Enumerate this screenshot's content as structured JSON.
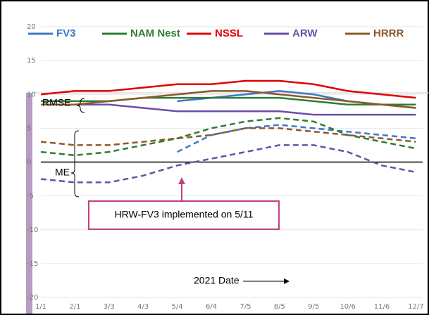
{
  "chart_data": {
    "type": "line",
    "categories": [
      "1/1",
      "2/1",
      "3/3",
      "4/3",
      "5/4",
      "6/4",
      "7/5",
      "8/5",
      "9/5",
      "10/6",
      "11/6",
      "12/7"
    ],
    "series": [
      {
        "name": "FV3",
        "color": "#3c78c8",
        "values": [
          null,
          null,
          null,
          null,
          9,
          9.5,
          10,
          10.5,
          10,
          9,
          8.5,
          8
        ],
        "me_values": [
          null,
          null,
          null,
          null,
          1.5,
          4,
          5,
          5.5,
          5,
          4.5,
          4,
          3.5
        ]
      },
      {
        "name": "NAM Nest",
        "color": "#2e7d32",
        "values": [
          9,
          9,
          9,
          9.5,
          9.5,
          9.5,
          9.5,
          9.5,
          9,
          8.5,
          8.5,
          8.5
        ],
        "me_values": [
          1.5,
          1,
          1.5,
          2.5,
          3.5,
          5,
          6,
          6.5,
          6,
          4,
          3,
          2
        ]
      },
      {
        "name": "NSSL",
        "color": "#e00000",
        "values": [
          10,
          10.5,
          10.5,
          11,
          11.5,
          11.5,
          12,
          12,
          11.5,
          10.5,
          10,
          9.5
        ],
        "me_values": [
          null,
          null,
          null,
          null,
          null,
          null,
          null,
          null,
          null,
          null,
          null,
          null
        ]
      },
      {
        "name": "ARW",
        "color": "#6a4fa8",
        "values": [
          8.5,
          8.5,
          8.5,
          8,
          7.5,
          7.5,
          7.5,
          7.5,
          7,
          7,
          7,
          7
        ],
        "me_values": [
          -2.5,
          -3,
          -3,
          -2,
          -0.5,
          0.5,
          1.5,
          2.5,
          2.5,
          1.5,
          -0.5,
          -1.5
        ]
      },
      {
        "name": "HRRR",
        "color": "#8b5a2b",
        "values": [
          8.5,
          8.5,
          9,
          9.5,
          10,
          10.5,
          10.5,
          10,
          9.5,
          9,
          8.5,
          8
        ],
        "me_values": [
          3,
          2.5,
          2.5,
          3,
          3.5,
          4,
          5,
          5,
          4.5,
          4,
          3.5,
          3
        ]
      }
    ],
    "ylim": [
      -20,
      20
    ],
    "yticks": [
      20,
      15,
      10,
      5,
      0,
      -5,
      -10,
      -15,
      -20
    ],
    "x_label": "2021 Date",
    "annotations": {
      "rmse": "RMSE",
      "me": "ME",
      "callout": "HRW-FV3 implemented on 5/11"
    }
  }
}
